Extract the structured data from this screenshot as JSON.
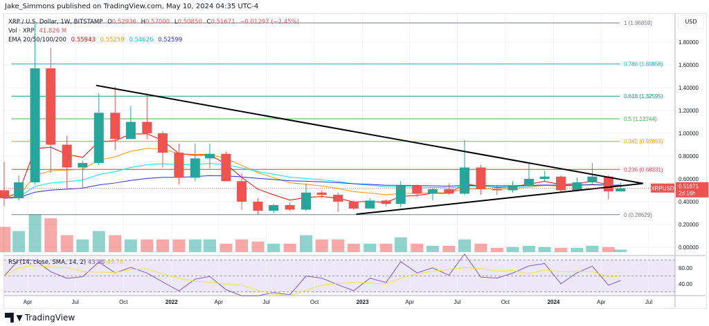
{
  "header": {
    "published": "Jake_Simmons published on TradingView.com, May 10, 2024 04:35 UTC-4"
  },
  "legend": {
    "symbol": "XRP / U.S. Dollar, 1W, BITSTAMP",
    "o_label": "O",
    "o": "0.52936",
    "h_label": "H",
    "h": "0.57000",
    "l_label": "L",
    "l": "0.50850",
    "c_label": "C",
    "c": "0.51671",
    "change": "−0.01297 (−2.45%)",
    "vol_label": "Vol · XRP",
    "vol": "41.826 M",
    "ema_label": "EMA 20/50/100/200",
    "ema20": "0.55943",
    "ema50": "0.55259",
    "ema100": "0.54626",
    "ema200": "0.52599"
  },
  "rsi_legend": {
    "label": "RSI (14, close, SMA, 14, 2)",
    "rsi": "43.96",
    "sma": "49.78"
  },
  "price_axis": {
    "currency": "USD",
    "ticks": [
      "1.80000",
      "1.60000",
      "1.40000",
      "1.20000",
      "1.00000",
      "0.80000",
      "0.60000",
      "0.40000",
      "0.20000",
      "0.00000"
    ],
    "tick_values": [
      1.8,
      1.6,
      1.4,
      1.2,
      1.0,
      0.8,
      0.6,
      0.4,
      0.2,
      0.0
    ],
    "last_price": "0.51671",
    "countdown": "2d 16h",
    "symbol_tag": "XRPUSD"
  },
  "rsi_axis": {
    "ticks": [
      "60.00",
      "40.00"
    ]
  },
  "time_axis": {
    "labels": [
      "Apr",
      "Jul",
      "Oct",
      "2022",
      "Apr",
      "Jul",
      "Oct",
      "2023",
      "Apr",
      "Jul",
      "Oct",
      "2024",
      "Apr",
      "Jul"
    ],
    "dates": [
      "2021-04-01",
      "2021-07-01",
      "2021-10-01",
      "2022-01-01",
      "2022-04-01",
      "2022-07-01",
      "2022-10-01",
      "2023-01-01",
      "2023-04-01",
      "2023-07-01",
      "2023-10-01",
      "2024-01-01",
      "2024-04-01",
      "2024-07-01"
    ]
  },
  "fib_levels": [
    {
      "label": "1 (1.96859)",
      "price": 1.96859,
      "color": "#787b86"
    },
    {
      "label": "0.786 (1.60858)",
      "price": 1.60858,
      "color": "#00bcd4"
    },
    {
      "label": "0.618 (1.32595)",
      "price": 1.32595,
      "color": "#089981"
    },
    {
      "label": "0.5 (1.12744)",
      "price": 1.12744,
      "color": "#4caf50"
    },
    {
      "label": "0.382 (0.92893)",
      "price": 0.92893,
      "color": "#ff9800"
    },
    {
      "label": "0.236 (0.68331)",
      "price": 0.68331,
      "color": "#f23645"
    },
    {
      "label": "0 (0.28629)",
      "price": 0.28629,
      "color": "#787b86"
    }
  ],
  "colors": {
    "up": "#26a69a",
    "down": "#ef5350",
    "ema20": "#ff0000",
    "ema50": "#ff9800",
    "ema100": "#00e5ff",
    "ema200": "#2a2af0",
    "rsi": "#7e57c2",
    "rsi_sma": "#f5e43a"
  },
  "chart_data": {
    "type": "candlestick",
    "trendlines": [
      {
        "from": [
          "2021-08-10",
          1.42
        ],
        "to": [
          "2024-06-20",
          0.56
        ]
      },
      {
        "from": [
          "2022-12-20",
          0.29
        ],
        "to": [
          "2024-06-20",
          0.56
        ]
      }
    ],
    "candles": [
      [
        "2021-02-15",
        0.5,
        0.75,
        0.36,
        0.43,
        6
      ],
      [
        "2021-03-15",
        0.43,
        0.63,
        0.41,
        0.57,
        5
      ],
      [
        "2021-04-15",
        0.57,
        1.96,
        0.55,
        1.57,
        9
      ],
      [
        "2021-05-15",
        1.57,
        1.75,
        0.65,
        0.9,
        8
      ],
      [
        "2021-06-15",
        0.9,
        0.98,
        0.51,
        0.7,
        4
      ],
      [
        "2021-07-15",
        0.7,
        0.76,
        0.52,
        0.74,
        3
      ],
      [
        "2021-08-15",
        0.74,
        1.35,
        0.72,
        1.18,
        5
      ],
      [
        "2021-09-15",
        1.18,
        1.41,
        0.85,
        0.95,
        4
      ],
      [
        "2021-10-15",
        0.95,
        1.24,
        0.95,
        1.1,
        3
      ],
      [
        "2021-11-15",
        1.1,
        1.35,
        0.95,
        1.0,
        3
      ],
      [
        "2021-12-15",
        1.0,
        1.02,
        0.7,
        0.83,
        3
      ],
      [
        "2022-01-15",
        0.83,
        0.91,
        0.55,
        0.61,
        3
      ],
      [
        "2022-02-15",
        0.61,
        0.91,
        0.58,
        0.78,
        3
      ],
      [
        "2022-03-15",
        0.78,
        0.91,
        0.69,
        0.82,
        3
      ],
      [
        "2022-04-15",
        0.82,
        0.84,
        0.58,
        0.58,
        2
      ],
      [
        "2022-05-15",
        0.58,
        0.65,
        0.33,
        0.4,
        3
      ],
      [
        "2022-06-15",
        0.4,
        0.43,
        0.29,
        0.32,
        2.5
      ],
      [
        "2022-07-15",
        0.32,
        0.38,
        0.3,
        0.37,
        2
      ],
      [
        "2022-08-15",
        0.37,
        0.39,
        0.32,
        0.33,
        2
      ],
      [
        "2022-09-15",
        0.33,
        0.56,
        0.32,
        0.48,
        4
      ],
      [
        "2022-10-15",
        0.48,
        0.5,
        0.43,
        0.46,
        3
      ],
      [
        "2022-11-15",
        0.46,
        0.48,
        0.31,
        0.4,
        3
      ],
      [
        "2022-12-15",
        0.4,
        0.41,
        0.33,
        0.34,
        2
      ],
      [
        "2023-01-15",
        0.34,
        0.43,
        0.34,
        0.41,
        2
      ],
      [
        "2023-02-15",
        0.41,
        0.42,
        0.36,
        0.38,
        2
      ],
      [
        "2023-03-15",
        0.38,
        0.58,
        0.35,
        0.54,
        3.5
      ],
      [
        "2023-04-15",
        0.54,
        0.55,
        0.44,
        0.47,
        2
      ],
      [
        "2023-05-15",
        0.47,
        0.52,
        0.41,
        0.51,
        1.5
      ],
      [
        "2023-06-15",
        0.51,
        0.56,
        0.46,
        0.47,
        1.5
      ],
      [
        "2023-07-15",
        0.47,
        0.94,
        0.46,
        0.7,
        3
      ],
      [
        "2023-08-15",
        0.7,
        0.72,
        0.46,
        0.51,
        2
      ],
      [
        "2023-09-15",
        0.51,
        0.54,
        0.46,
        0.5,
        1
      ],
      [
        "2023-10-15",
        0.5,
        0.58,
        0.48,
        0.54,
        1.2
      ],
      [
        "2023-11-15",
        0.54,
        0.74,
        0.54,
        0.6,
        1.5
      ],
      [
        "2023-12-15",
        0.6,
        0.67,
        0.58,
        0.62,
        1.2
      ],
      [
        "2024-01-15",
        0.62,
        0.63,
        0.48,
        0.5,
        1
      ],
      [
        "2024-02-15",
        0.5,
        0.61,
        0.49,
        0.57,
        1
      ],
      [
        "2024-03-15",
        0.57,
        0.74,
        0.56,
        0.62,
        1.5
      ],
      [
        "2024-04-15",
        0.62,
        0.63,
        0.42,
        0.49,
        1.2
      ],
      [
        "2024-05-08",
        0.49,
        0.57,
        0.5,
        0.517,
        0.6
      ]
    ]
  }
}
